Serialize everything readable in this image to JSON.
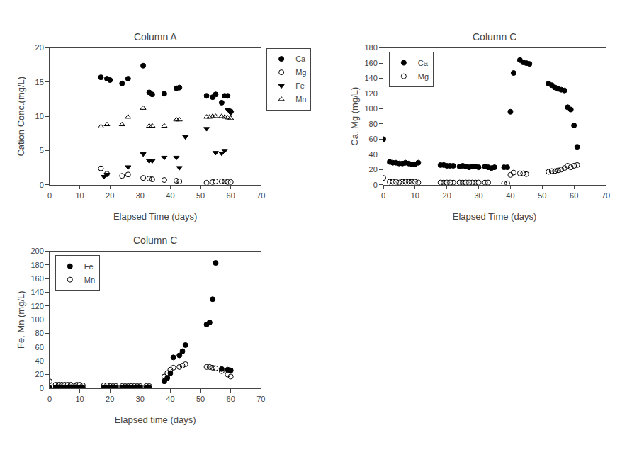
{
  "chart_data": [
    {
      "type": "scatter",
      "title": "Column A",
      "x_label": "Elapsed Time (days)",
      "y_label": "Cation Conc.(mg/L)",
      "xlim": [
        0,
        70
      ],
      "ylim": [
        0,
        20
      ],
      "xticks": [
        0,
        10,
        20,
        30,
        40,
        50,
        60,
        70
      ],
      "yticks": [
        0,
        5,
        10,
        15,
        20
      ],
      "grid": false,
      "legend": "upper right",
      "series": [
        {
          "name": "Ca",
          "color": "black",
          "marker": "circle",
          "x": [
            17,
            19,
            20,
            24,
            26,
            31,
            33,
            34,
            38,
            42,
            43,
            52,
            54,
            55,
            57,
            58,
            59,
            60
          ],
          "values": [
            15.7,
            15.5,
            15.3,
            14.8,
            15.5,
            17.4,
            13.5,
            13.2,
            13.3,
            14.1,
            14.2,
            13.0,
            12.8,
            13.2,
            12.0,
            13.0,
            13.0,
            10.7
          ]
        },
        {
          "name": "Mg",
          "color": "black",
          "marker": "circle-open",
          "x": [
            17,
            19,
            24,
            26,
            31,
            33,
            34,
            38,
            42,
            43,
            52,
            54,
            55,
            57,
            58,
            59,
            60
          ],
          "values": [
            2.4,
            1.6,
            1.3,
            1.5,
            1.0,
            0.9,
            0.8,
            0.7,
            0.6,
            0.5,
            0.3,
            0.4,
            0.5,
            0.5,
            0.5,
            0.4,
            0.4
          ]
        },
        {
          "name": "Fe",
          "color": "black",
          "marker": "triangle-down",
          "x": [
            18,
            19,
            26,
            31,
            33,
            34,
            38,
            42,
            43,
            45,
            52,
            55,
            57,
            58,
            59,
            60
          ],
          "values": [
            1.2,
            1.5,
            2.6,
            4.5,
            3.5,
            3.5,
            4.0,
            4.0,
            2.5,
            7.0,
            8.2,
            4.7,
            4.6,
            5.0,
            11.0,
            10.5
          ]
        },
        {
          "name": "Mn",
          "color": "black",
          "marker": "triangle-up-open",
          "x": [
            17,
            19,
            24,
            26,
            31,
            33,
            34,
            38,
            42,
            43,
            52,
            53,
            54,
            55,
            57,
            58,
            59,
            60
          ],
          "values": [
            8.5,
            8.8,
            8.8,
            9.9,
            11.2,
            8.6,
            8.6,
            8.6,
            9.5,
            9.5,
            9.9,
            9.9,
            10.0,
            10.0,
            10.0,
            9.9,
            9.8,
            9.7
          ]
        }
      ]
    },
    {
      "type": "scatter",
      "title": "Column C",
      "x_label": "Elapsed Time (days)",
      "y_label": "Ca, Mg (mg/L)",
      "xlim": [
        0,
        70
      ],
      "ylim": [
        0,
        180
      ],
      "xticks": [
        0,
        10,
        20,
        30,
        40,
        50,
        60,
        70
      ],
      "yticks": [
        0,
        20,
        40,
        60,
        80,
        100,
        120,
        140,
        160,
        180
      ],
      "grid": false,
      "legend": "upper left",
      "series": [
        {
          "name": "Ca",
          "color": "black",
          "marker": "circle",
          "x": [
            0,
            2,
            3,
            4,
            5,
            6,
            7,
            8,
            9,
            10,
            11,
            18,
            19,
            20,
            21,
            22,
            24,
            25,
            26,
            27,
            28,
            29,
            30,
            32,
            33,
            34,
            35,
            38,
            39,
            40,
            41,
            43,
            44,
            45,
            46,
            52,
            53,
            54,
            55,
            56,
            57,
            58,
            59,
            60,
            61
          ],
          "values": [
            60,
            30,
            29,
            29,
            28,
            28,
            29,
            28,
            27,
            27,
            29,
            26,
            26,
            25,
            25,
            25,
            24,
            25,
            24,
            23,
            24,
            24,
            23,
            24,
            23,
            22,
            23,
            23,
            23,
            96,
            147,
            164,
            161,
            160,
            159,
            133,
            131,
            128,
            126,
            125,
            124,
            102,
            99,
            78,
            50
          ]
        },
        {
          "name": "Mg",
          "color": "black",
          "marker": "circle-open",
          "x": [
            0,
            2,
            3,
            4,
            5,
            6,
            7,
            8,
            9,
            10,
            11,
            18,
            19,
            20,
            21,
            22,
            24,
            25,
            26,
            27,
            28,
            29,
            30,
            32,
            33,
            38,
            39,
            40,
            41,
            43,
            44,
            45,
            52,
            53,
            54,
            55,
            56,
            57,
            58,
            59,
            60,
            61
          ],
          "values": [
            9,
            4,
            4,
            4,
            3,
            4,
            4,
            4,
            4,
            4,
            3,
            3,
            3,
            3,
            3,
            3,
            3,
            3,
            3,
            3,
            3,
            3,
            3,
            3,
            3,
            2,
            2,
            13,
            16,
            15,
            15,
            14,
            17,
            18,
            18,
            19,
            20,
            22,
            25,
            23,
            25,
            26
          ]
        }
      ]
    },
    {
      "type": "scatter",
      "title": "Column C",
      "x_label": "Elapsed time (days)",
      "y_label": "Fe, Mn (mg/L)",
      "xlim": [
        0,
        70
      ],
      "ylim": [
        0,
        200
      ],
      "xticks": [
        0,
        10,
        20,
        30,
        40,
        50,
        60,
        70
      ],
      "yticks": [
        0,
        20,
        40,
        60,
        80,
        100,
        120,
        140,
        160,
        180,
        200
      ],
      "grid": false,
      "legend": "upper left",
      "series": [
        {
          "name": "Fe",
          "color": "black",
          "marker": "circle",
          "x": [
            0,
            2,
            3,
            4,
            5,
            6,
            7,
            8,
            9,
            10,
            11,
            18,
            19,
            20,
            21,
            22,
            24,
            25,
            26,
            27,
            28,
            29,
            30,
            32,
            33,
            38,
            39,
            40,
            41,
            43,
            44,
            45,
            52,
            53,
            54,
            55,
            57,
            59,
            60
          ],
          "values": [
            0.5,
            0.5,
            0.5,
            0.5,
            0.5,
            0.5,
            0.5,
            0.5,
            0.5,
            0.5,
            0.5,
            0.5,
            0.5,
            0.5,
            0.5,
            0.5,
            0.5,
            0.5,
            0.5,
            0.5,
            0.5,
            0.5,
            0.5,
            0.5,
            0.5,
            10,
            15,
            22,
            45,
            48,
            54,
            63,
            93,
            96,
            130,
            183,
            28,
            27,
            26
          ]
        },
        {
          "name": "Mn",
          "color": "black",
          "marker": "circle-open",
          "x": [
            0,
            2,
            3,
            4,
            5,
            6,
            7,
            8,
            9,
            10,
            11,
            18,
            19,
            20,
            21,
            22,
            24,
            25,
            26,
            27,
            28,
            29,
            30,
            32,
            33,
            38,
            39,
            40,
            41,
            43,
            44,
            45,
            52,
            53,
            54,
            55,
            57,
            59,
            60
          ],
          "values": [
            10,
            5,
            5,
            5,
            5,
            5,
            5,
            4,
            5,
            5,
            4,
            4,
            4,
            3,
            3,
            3,
            3,
            3,
            3,
            3,
            3,
            3,
            3,
            3,
            3,
            17,
            22,
            27,
            30,
            31,
            33,
            35,
            31,
            31,
            30,
            29,
            25,
            20,
            17
          ]
        }
      ]
    }
  ]
}
